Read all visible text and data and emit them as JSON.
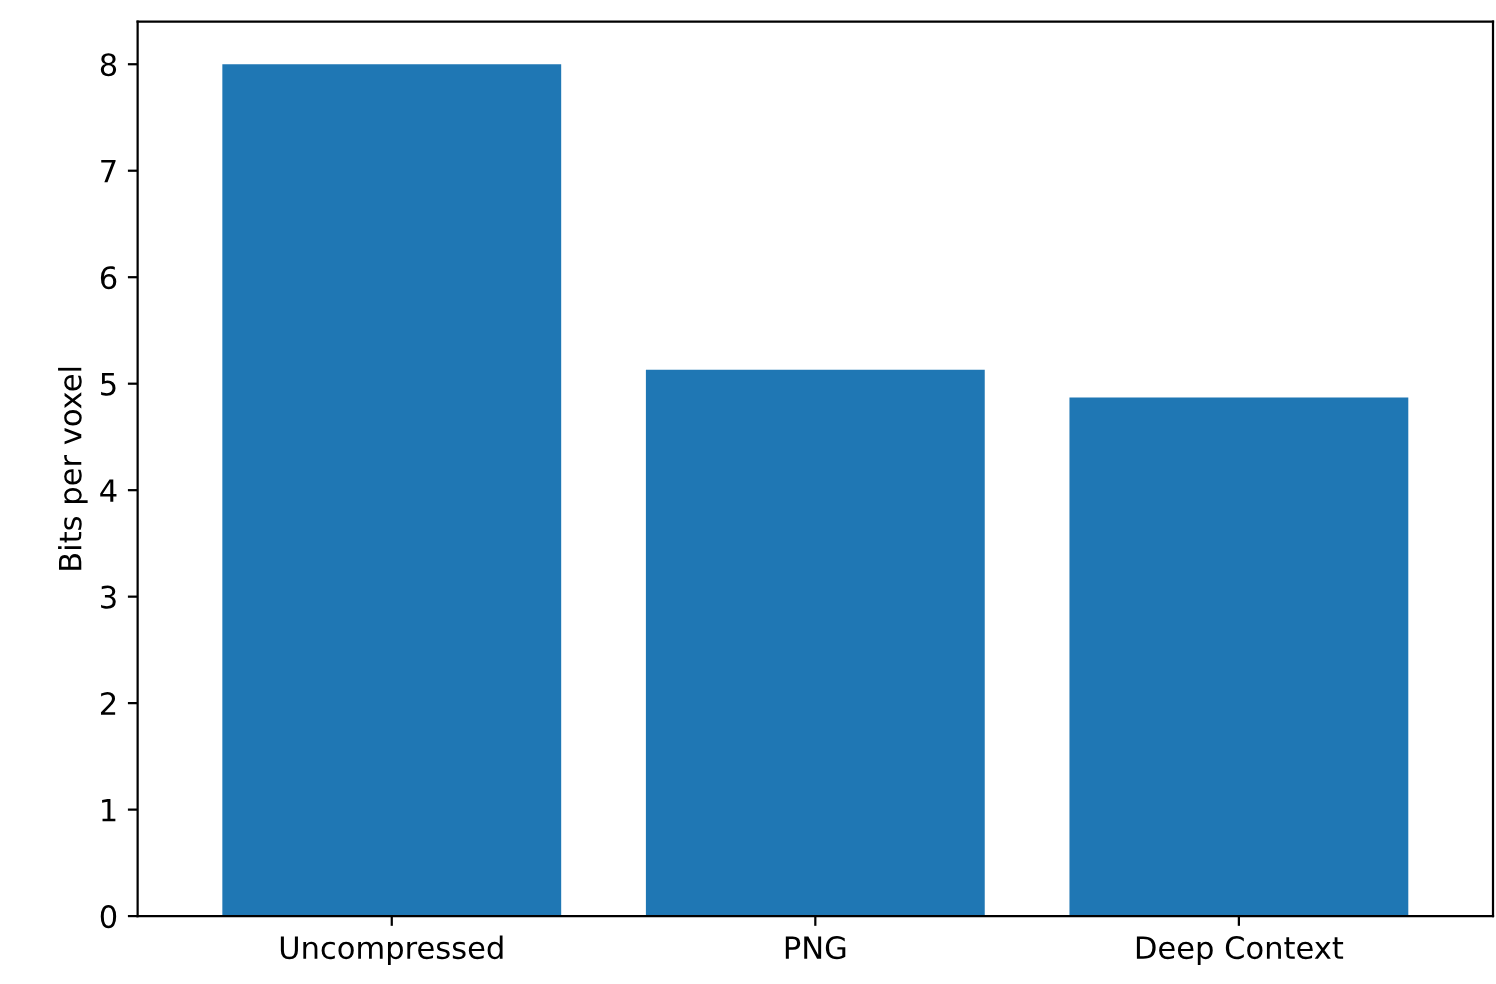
{
  "chart_data": {
    "type": "bar",
    "ylabel": "Bits per voxel",
    "categories": [
      "Uncompressed",
      "PNG",
      "Deep Context"
    ],
    "values": [
      8.0,
      5.13,
      4.87
    ],
    "color": "#1f77b4",
    "ylim": [
      0,
      8.4
    ],
    "yticks": [
      0,
      1,
      2,
      3,
      4,
      5,
      6,
      7,
      8
    ],
    "grid": false
  }
}
